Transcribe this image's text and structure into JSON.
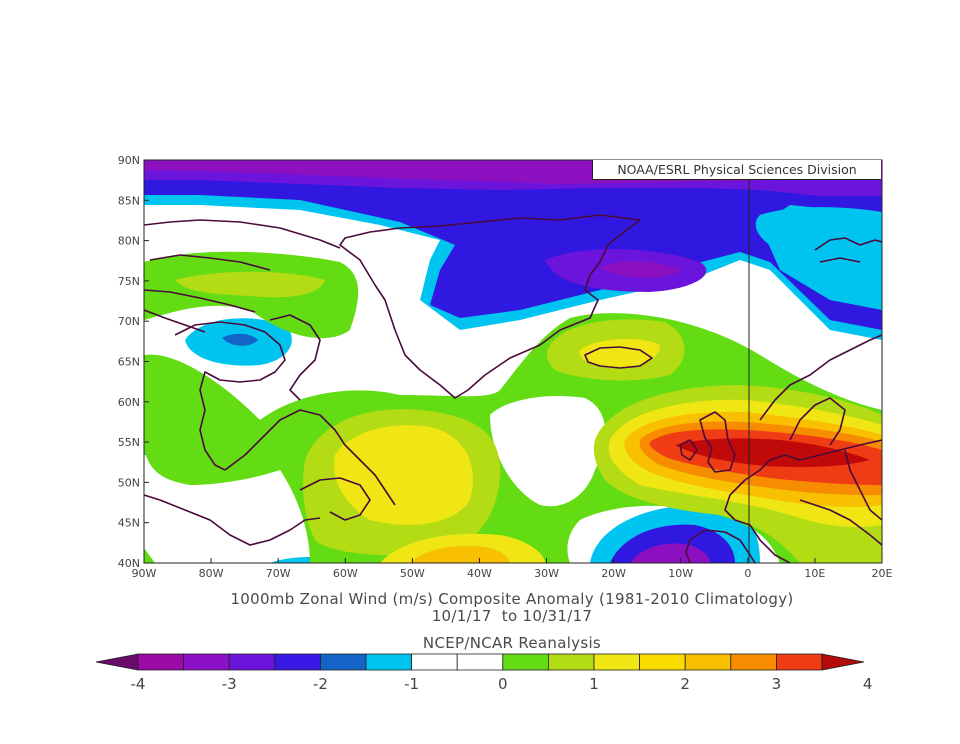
{
  "credit": "NOAA/ESRL Physical Sciences Division",
  "title": {
    "line1": "1000mb Zonal Wind (m/s) Composite Anomaly (1981-2010 Climatology)",
    "line2": "10/1/17  to 10/31/17",
    "line3": "NCEP/NCAR Reanalysis"
  },
  "axes": {
    "lat_labels": [
      "90N",
      "85N",
      "80N",
      "75N",
      "70N",
      "65N",
      "60N",
      "55N",
      "50N",
      "45N",
      "40N"
    ],
    "lon_labels": [
      "90W",
      "80W",
      "70W",
      "60W",
      "50W",
      "40W",
      "30W",
      "20W",
      "10W",
      "0",
      "10E",
      "20E"
    ]
  },
  "colorbar": {
    "ticks": [
      "-4",
      "-3",
      "-2",
      "-1",
      "0",
      "1",
      "2",
      "3",
      "4"
    ],
    "colors": [
      "#6a0a6a",
      "#9a0aa4",
      "#8b10c8",
      "#6a14dc",
      "#3818e4",
      "#1464c8",
      "#00c4f0",
      "#ffffff",
      "#ffffff",
      "#64dc14",
      "#b4dc14",
      "#f0e614",
      "#f8dc00",
      "#f8c000",
      "#f88c00",
      "#f03c14",
      "#b40a0a"
    ]
  },
  "map_colors": {
    "dark_purple": "#8c10c0",
    "purple": "#6a14dc",
    "blue": "#3018e0",
    "mid_blue": "#1464c8",
    "cyan": "#00c4f0",
    "green": "#64dc14",
    "lime": "#b4dc14",
    "yellow": "#f0e614",
    "gold": "#f8c000",
    "orange": "#f88c00",
    "red": "#f03c14",
    "dark_red": "#c00a0a",
    "coast": "#4a0a3c"
  }
}
